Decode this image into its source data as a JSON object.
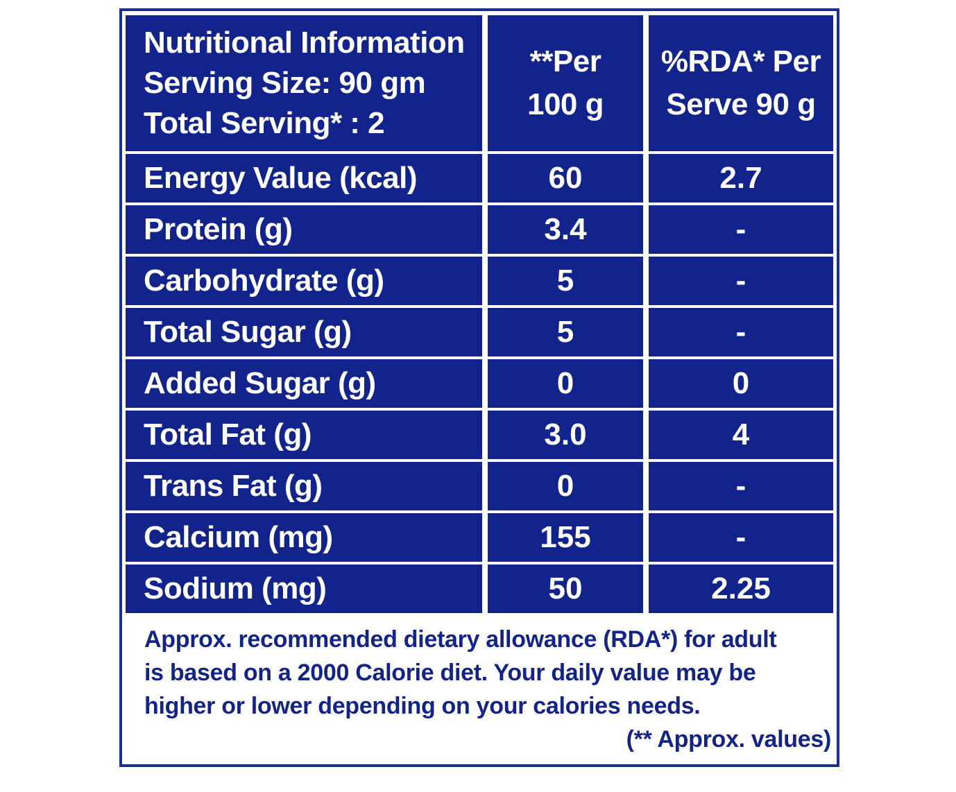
{
  "header": {
    "title_lines": [
      "Nutritional Information",
      "Serving Size: 90 gm",
      "Total Serving* : 2"
    ],
    "col_per100_lines": [
      "**Per",
      "100 g"
    ],
    "col_rda_lines": [
      "%RDA* Per",
      "Serve 90 g"
    ]
  },
  "rows": [
    {
      "label": "Energy Value (kcal)",
      "per100": "60",
      "rda": "2.7"
    },
    {
      "label": "Protein (g)",
      "per100": "3.4",
      "rda": "-"
    },
    {
      "label": "Carbohydrate (g)",
      "per100": "5",
      "rda": "-"
    },
    {
      "label": "Total Sugar (g)",
      "per100": "5",
      "rda": "-"
    },
    {
      "label": "Added Sugar (g)",
      "per100": "0",
      "rda": "0"
    },
    {
      "label": "Total Fat (g)",
      "per100": "3.0",
      "rda": "4"
    },
    {
      "label": "Trans Fat (g)",
      "per100": "0",
      "rda": "-"
    },
    {
      "label": "Calcium (mg)",
      "per100": "155",
      "rda": "-"
    },
    {
      "label": "Sodium (mg)",
      "per100": "50",
      "rda": "2.25"
    }
  ],
  "footnote": {
    "lines": [
      "Approx. recommended dietary allowance (RDA*) for adult",
      "is based on a 2000 Calorie diet. Your daily value may be",
      "higher or lower depending on your calories needs."
    ],
    "approx_note": "(** Approx. values)"
  },
  "colors": {
    "cell_fill": "#12248b",
    "border": "#1a2f94",
    "text_on_fill": "#ffffff",
    "footnote_text": "#12248b"
  }
}
